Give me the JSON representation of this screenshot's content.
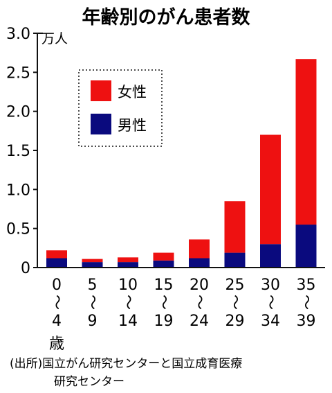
{
  "chart_data": {
    "type": "bar",
    "stacked": true,
    "title": "年齢別のがん患者数",
    "y_unit_label": "万人",
    "ylim": [
      0,
      3.0
    ],
    "y_ticks": [
      "0",
      "0.5",
      "1.0",
      "1.5",
      "2.0",
      "2.5",
      "3.0"
    ],
    "x_unit_label": "歳",
    "categories": [
      {
        "top": "0",
        "sep": "〜",
        "bottom": "4"
      },
      {
        "top": "5",
        "sep": "〜",
        "bottom": "9"
      },
      {
        "top": "10",
        "sep": "〜",
        "bottom": "14"
      },
      {
        "top": "15",
        "sep": "〜",
        "bottom": "19"
      },
      {
        "top": "20",
        "sep": "〜",
        "bottom": "24"
      },
      {
        "top": "25",
        "sep": "〜",
        "bottom": "29"
      },
      {
        "top": "30",
        "sep": "〜",
        "bottom": "34"
      },
      {
        "top": "35",
        "sep": "〜",
        "bottom": "39"
      }
    ],
    "series": [
      {
        "name": "男性",
        "color": "#0a0a7e",
        "values": [
          0.12,
          0.07,
          0.07,
          0.09,
          0.12,
          0.19,
          0.3,
          0.55
        ]
      },
      {
        "name": "女性",
        "color": "#ee1111",
        "values": [
          0.1,
          0.04,
          0.06,
          0.1,
          0.24,
          0.66,
          1.4,
          2.12
        ]
      }
    ],
    "legend_placement": "top-left",
    "legend_order": [
      "女性",
      "男性"
    ],
    "grid": false
  },
  "source": {
    "line1": "(出所)国立がん研究センターと国立成育医療",
    "line2": "研究センター"
  }
}
